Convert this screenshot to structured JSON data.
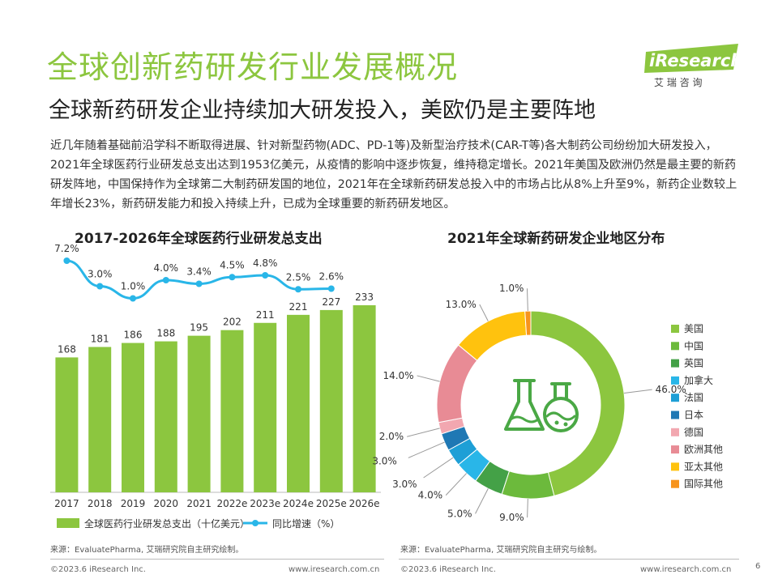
{
  "page": {
    "title": "全球创新药研发行业发展概况",
    "subtitle": "全球新药研发企业持续加大研发投入，美欧仍是主要阵地",
    "intro": "近几年随着基础前沿学科不断取得进展、针对新型药物(ADC、PD-1等)及新型治疗技术(CAR-T等)各大制药公司纷纷加大研发投入，2021年全球医药行业研发总支出达到1953亿美元，从疫情的影响中逐步恢复，维持稳定增长。2021年美国及欧洲仍然是最主要的新药研发阵地，中国保持作为全球第二大制药研发国的地位，2021年在全球新药研发总投入中的市场占比从8%上升至9%，新药企业数较上年增长23%，新药研发能力和投入持续上升，已成为全球重要的新药研发地区。",
    "page_number": "6"
  },
  "logo": {
    "name": "iResearch",
    "tagline": "艾 瑞 咨 询",
    "color": "#8cc63f"
  },
  "colors": {
    "accent": "#8cc63f",
    "bar": "#8cc63f",
    "line": "#29b6e8"
  },
  "chart_data": [
    {
      "type": "bar",
      "title": "2017-2026年全球医药行业研发总支出",
      "categories": [
        "2017",
        "2018",
        "2019",
        "2020",
        "2021",
        "2022e",
        "2023e",
        "2024e",
        "2025e",
        "2026e"
      ],
      "series": [
        {
          "name": "全球医药行业研发总支出（十亿美元）",
          "type": "bar",
          "values": [
            168,
            181,
            186,
            188,
            195,
            202,
            211,
            221,
            227,
            233
          ]
        },
        {
          "name": "同比增速（%）",
          "type": "line",
          "values": [
            7.2,
            3.0,
            1.0,
            4.0,
            3.4,
            4.5,
            4.8,
            2.5,
            2.6,
            null
          ],
          "labels": [
            "7.2%",
            "3.0%",
            "1.0%",
            "4.0%",
            "3.4%",
            "4.5%",
            "4.8%",
            "2.5%",
            "2.6%",
            ""
          ]
        }
      ],
      "ylim": [
        0,
        240
      ],
      "legend": "bottom"
    },
    {
      "type": "pie",
      "title": "2021年全球新药研发企业地区分布",
      "donut": true,
      "labels": [
        "美国",
        "中国",
        "英国",
        "加拿大",
        "法国",
        "日本",
        "德国",
        "欧洲其他",
        "亚太其他",
        "国际其他"
      ],
      "values": [
        46.0,
        9.0,
        5.0,
        4.0,
        3.0,
        3.0,
        2.0,
        14.0,
        13.0,
        1.0
      ],
      "value_labels": [
        "46.0%",
        "9.0%",
        "5.0%",
        "4.0%",
        "3.0%",
        "3.0%",
        "2.0%",
        "14.0%",
        "13.0%",
        "1.0%"
      ],
      "colors": [
        "#8cc63f",
        "#6cba3c",
        "#44a147",
        "#29b6e8",
        "#1e9fd6",
        "#1f78b4",
        "#f2a7b0",
        "#e88b95",
        "#ffc20e",
        "#f7941d"
      ],
      "center_icon": "flask-icon",
      "legend": "right"
    }
  ],
  "sources": {
    "left": "来源：EvaluatePharma, 艾瑞研究院自主研究绘制。",
    "right": "来源：EvaluatePharma, 艾瑞研究院自主研究与绘制。"
  },
  "footer": {
    "copyright_left": "©2023.6 iResearch Inc.",
    "url_left": "www.iresearch.com.cn",
    "copyright_right": "©2023.6 iResearch Inc.",
    "url_right": "www.iresearch.com.cn"
  }
}
